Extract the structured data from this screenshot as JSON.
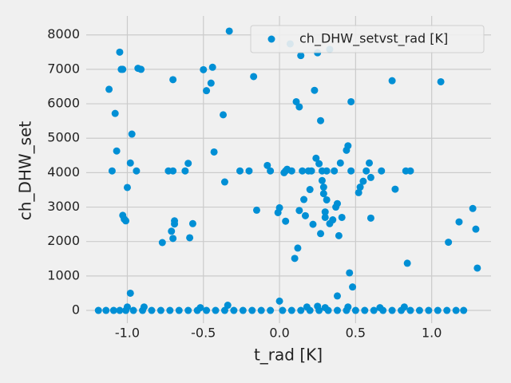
{
  "chart_data": {
    "type": "scatter",
    "xlabel": "t_rad [K]",
    "ylabel": "ch_DHW_set",
    "x": [
      -1.12,
      -1.05,
      -1.04,
      -1.03,
      -1.08,
      -1.07,
      -1.1,
      -1.03,
      -1.02,
      -1.01,
      -1.0,
      -0.98,
      -0.97,
      -0.94,
      -0.93,
      -0.91,
      -0.98,
      -0.7,
      -0.73,
      -0.7,
      -0.62,
      -0.6,
      -0.71,
      -0.7,
      -0.69,
      -0.69,
      -0.77,
      -0.59,
      -0.57,
      -0.5,
      -0.48,
      -0.45,
      -0.44,
      -0.43,
      -0.37,
      -0.36,
      -0.33,
      -0.26,
      -0.2,
      -0.17,
      -0.15,
      -0.08,
      -0.06,
      -0.01,
      0.0,
      0.03,
      0.04,
      0.05,
      0.04,
      0.08,
      0.07,
      0.1,
      0.11,
      0.13,
      0.12,
      0.14,
      0.13,
      0.16,
      0.15,
      0.17,
      0.19,
      0.2,
      0.21,
      0.23,
      0.25,
      0.22,
      0.24,
      0.26,
      0.27,
      0.27,
      0.28,
      0.28,
      0.29,
      0.29,
      0.3,
      0.31,
      0.3,
      0.31,
      0.33,
      0.33,
      0.35,
      0.36,
      0.37,
      0.38,
      0.39,
      0.4,
      0.41,
      0.38,
      0.44,
      0.45,
      0.47,
      0.47,
      0.46,
      0.48,
      0.52,
      0.53,
      0.55,
      0.57,
      0.59,
      0.6,
      0.6,
      0.67,
      0.74,
      0.76,
      0.83,
      0.86,
      0.84,
      1.06,
      1.11,
      1.18,
      1.27,
      1.29,
      1.3,
      0.0,
      -1.19,
      -1.14,
      -1.09,
      -1.05,
      -1.01,
      -0.96,
      -0.9,
      -0.84,
      -0.78,
      -0.72,
      -0.66,
      -0.6,
      -0.54,
      -0.48,
      -0.42,
      -0.36,
      -0.3,
      -0.24,
      -0.18,
      -0.12,
      -0.06,
      0.02,
      0.08,
      0.14,
      0.2,
      0.26,
      0.32,
      0.38,
      0.44,
      0.5,
      0.56,
      0.62,
      0.68,
      0.74,
      0.8,
      0.86,
      0.92,
      0.98,
      1.04,
      1.1,
      1.16,
      1.21,
      -1.0,
      -0.89,
      -0.52,
      -0.34,
      0.18,
      0.25,
      0.3,
      0.45,
      0.66,
      0.82
    ],
    "series": [
      {
        "name": "ch_DHW_setvst_rad [K]",
        "color": "#008fd5",
        "values": [
          6420,
          7500,
          7000,
          7000,
          5720,
          4630,
          4050,
          2760,
          2650,
          2600,
          3570,
          4280,
          5120,
          4050,
          7030,
          7000,
          500,
          6700,
          4050,
          4050,
          4050,
          4270,
          2300,
          2090,
          2510,
          2600,
          1970,
          2110,
          2520,
          6990,
          6380,
          6600,
          7060,
          4600,
          5680,
          3730,
          8110,
          4050,
          4050,
          6790,
          2910,
          4210,
          4050,
          2840,
          2980,
          4000,
          4050,
          4100,
          2590,
          4050,
          7740,
          1510,
          6060,
          5910,
          1810,
          7400,
          2900,
          3220,
          4050,
          2750,
          4050,
          3510,
          4050,
          6390,
          7480,
          2500,
          4420,
          4260,
          5510,
          2230,
          4050,
          3770,
          3580,
          3390,
          2860,
          3210,
          2700,
          4050,
          7580,
          2520,
          2630,
          4050,
          3000,
          3100,
          2170,
          4280,
          2700,
          420,
          4650,
          4780,
          6060,
          4050,
          1090,
          680,
          3420,
          3580,
          3750,
          4050,
          4280,
          3860,
          2680,
          4050,
          6670,
          3520,
          4050,
          4050,
          1370,
          6640,
          1980,
          2570,
          2960,
          2360,
          1230,
          270,
          0,
          0,
          0,
          0,
          0,
          0,
          0,
          0,
          0,
          0,
          0,
          0,
          0,
          0,
          0,
          0,
          0,
          0,
          0,
          0,
          0,
          0,
          0,
          0,
          0,
          0,
          0,
          0,
          0,
          0,
          0,
          0,
          0,
          0,
          0,
          0,
          0,
          0,
          0,
          0,
          0,
          0,
          100,
          100,
          80,
          150,
          100,
          120,
          80,
          100,
          80,
          100
        ]
      }
    ],
    "xlim": [
      -1.27,
      1.39
    ],
    "ylim": [
      -370,
      8550
    ],
    "xticks": [
      {
        "value": -1.0,
        "label": "-1.0"
      },
      {
        "value": -0.5,
        "label": "-0.5"
      },
      {
        "value": 0.0,
        "label": "0.0"
      },
      {
        "value": 0.5,
        "label": "0.5"
      },
      {
        "value": 1.0,
        "label": "1.0"
      }
    ],
    "yticks": [
      0,
      1000,
      2000,
      3000,
      4000,
      5000,
      6000,
      7000,
      8000
    ],
    "grid": true,
    "legend": "upper right"
  }
}
